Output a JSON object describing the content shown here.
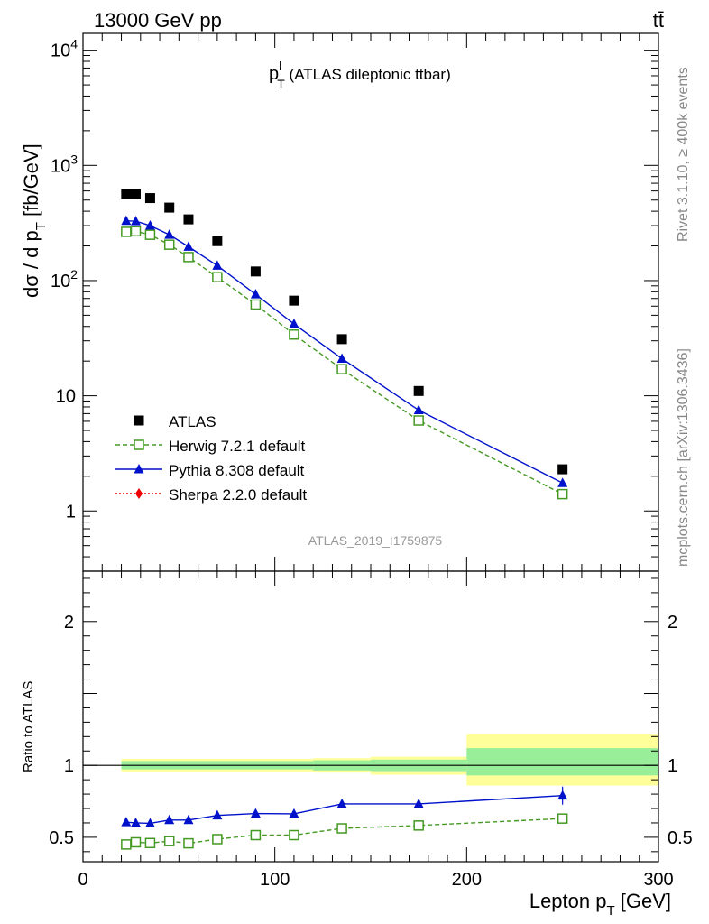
{
  "header": {
    "left": "13000 GeV pp",
    "right": "tt̄"
  },
  "side": {
    "rivet": "Rivet 3.1.10, ≥ 400k events",
    "mcplots": "mcplots.cern.ch [arXiv:1306.3436]"
  },
  "chart_data": [
    {
      "type": "scatter",
      "panel": "main",
      "title_main": "p",
      "title_sup": "l",
      "title_sub": "T",
      "title_rest": " (ATLAS dileptonic ttbar)",
      "ylabel": "dσ / d p",
      "ylabel_sub": "T",
      "ylabel_unit": " [fb/GeV]",
      "watermark": "ATLAS_2019_I1759875",
      "yscale": "log",
      "ylim": [
        0.3,
        14000
      ],
      "xlim": [
        0,
        300
      ],
      "y_ticks": [
        {
          "v": 10000,
          "base": "10",
          "exp": "4"
        },
        {
          "v": 1000,
          "base": "10",
          "exp": "3"
        },
        {
          "v": 100,
          "base": "10",
          "exp": "2"
        },
        {
          "v": 10,
          "base": "10",
          "exp": ""
        },
        {
          "v": 1,
          "base": "1",
          "exp": ""
        }
      ],
      "legend_position": "bottom-left",
      "x": [
        22.5,
        27.5,
        35,
        45,
        55,
        70,
        90,
        110,
        135,
        175,
        250
      ],
      "series": [
        {
          "name": "ATLAS",
          "color": "#000000",
          "marker": "square-filled",
          "line": "none",
          "values": [
            560,
            560,
            520,
            430,
            340,
            220,
            120,
            67,
            31,
            11,
            2.3
          ]
        },
        {
          "name": "Herwig 7.2.1 default",
          "color": "#449922",
          "marker": "square-open",
          "line": "dashed",
          "values": [
            265,
            268,
            250,
            205,
            160,
            107,
            62,
            34,
            17,
            6.1,
            1.4
          ]
        },
        {
          "name": "Pythia 8.308 default",
          "color": "#0011cc",
          "marker": "triangle-filled",
          "line": "solid",
          "values": [
            330,
            328,
            300,
            250,
            197,
            135,
            76,
            42,
            21,
            7.5,
            1.75
          ]
        },
        {
          "name": "Sherpa 2.2.0 default",
          "color": "#ee0000",
          "marker": "diamond-filled",
          "line": "dotted",
          "values": []
        }
      ]
    },
    {
      "type": "line",
      "panel": "ratio",
      "ylabel": "Ratio to ATLAS",
      "xlabel": "Lepton p",
      "xlabel_sub": "T",
      "xlabel_unit": " [GeV]",
      "xlim": [
        0,
        300
      ],
      "ylim": [
        0.33,
        2.35
      ],
      "x_ticks": [
        0,
        100,
        200,
        300
      ],
      "y_ticks": [
        0.5,
        1,
        2
      ],
      "bands": [
        {
          "x0": 20,
          "x1": 120,
          "yellow": [
            0.958,
            1.045
          ],
          "green": [
            0.972,
            1.03
          ]
        },
        {
          "x0": 120,
          "x1": 150,
          "yellow": [
            0.95,
            1.05
          ],
          "green": [
            0.965,
            1.035
          ]
        },
        {
          "x0": 150,
          "x1": 200,
          "yellow": [
            0.935,
            1.06
          ],
          "green": [
            0.96,
            1.04
          ]
        },
        {
          "x0": 200,
          "x1": 300,
          "yellow": [
            0.86,
            1.22
          ],
          "green": [
            0.93,
            1.12
          ]
        }
      ],
      "x": [
        22.5,
        27.5,
        35,
        45,
        55,
        70,
        90,
        110,
        135,
        175,
        250
      ],
      "series": [
        {
          "name": "Herwig 7.2.1 default",
          "color": "#449922",
          "marker": "square-open",
          "line": "dashed",
          "values": [
            0.45,
            0.465,
            0.46,
            0.473,
            0.458,
            0.487,
            0.515,
            0.515,
            0.562,
            0.582,
            0.63
          ]
        },
        {
          "name": "Pythia 8.308 default",
          "color": "#0011cc",
          "marker": "triangle-filled",
          "line": "solid",
          "values": [
            0.605,
            0.6,
            0.597,
            0.62,
            0.62,
            0.652,
            0.665,
            0.663,
            0.732,
            0.732,
            0.79
          ]
        }
      ]
    }
  ]
}
